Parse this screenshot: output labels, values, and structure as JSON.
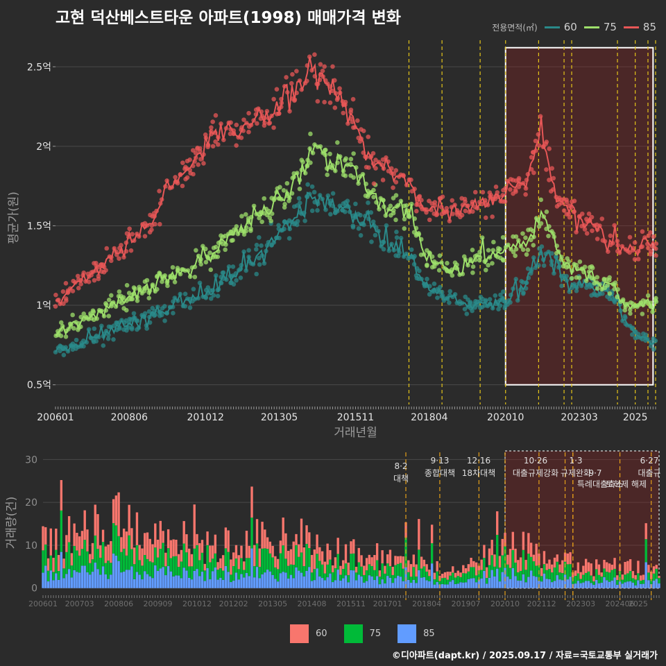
{
  "title": "고현 덕산베스트타운 아파트(1998) 매매가격 변화",
  "caption": "©디아파트(dapt.kr) / 2025.09.17 / 자료=국토교통부 실거래가",
  "colors": {
    "bg": "#2b2b2b",
    "s60": "#2a8a8a",
    "s75": "#9ee06b",
    "s85": "#e85757",
    "bar60": "#f8766d",
    "bar75": "#00ba38",
    "bar85": "#619cff",
    "policy": "#e6c619"
  },
  "chart_data": [
    {
      "type": "line",
      "legend_title": "전용면적(㎡)",
      "ylabel": "평균가(원)",
      "xlabel": "거래년월",
      "x_tick_labels": [
        "200601",
        "200806",
        "201012",
        "201305",
        "201511",
        "201804",
        "202010",
        "202303",
        "2025"
      ],
      "y_ticks": [
        0.5,
        1,
        1.5,
        2,
        2.5
      ],
      "y_tick_labels": [
        "0.5억",
        "1억",
        "1.5억",
        "2억",
        "2.5억"
      ],
      "y_range": [
        0.42,
        2.68
      ],
      "x_range": [
        "200601",
        "202509"
      ],
      "grid": true,
      "highlight_box": {
        "from": "202010",
        "to": "202508",
        "y": [
          0.5,
          2.62
        ]
      },
      "policy_dates": [
        "201708",
        "201809",
        "201912",
        "202010",
        "202111",
        "202209",
        "202212",
        "202406",
        "202501",
        "202506",
        "202509"
      ],
      "series": [
        {
          "name": "60",
          "anchors": [
            [
              "200601",
              0.7
            ],
            [
              "200901",
              0.92
            ],
            [
              "201101",
              1.08
            ],
            [
              "201301",
              1.38
            ],
            [
              "201401",
              1.58
            ],
            [
              "201405",
              1.67
            ],
            [
              "201509",
              1.58
            ],
            [
              "201604",
              1.52
            ],
            [
              "201709",
              1.3
            ],
            [
              "201802",
              1.12
            ],
            [
              "201901",
              1.02
            ],
            [
              "202001",
              1.0
            ],
            [
              "202010",
              1.03
            ],
            [
              "202107",
              1.17
            ],
            [
              "202112",
              1.32
            ],
            [
              "202206",
              1.3
            ],
            [
              "202209",
              1.16
            ],
            [
              "202406",
              1.05
            ],
            [
              "202409",
              0.9
            ],
            [
              "202508",
              0.75
            ]
          ]
        },
        {
          "name": "75",
          "anchors": [
            [
              "200601",
              0.82
            ],
            [
              "200901",
              1.12
            ],
            [
              "201101",
              1.3
            ],
            [
              "201301",
              1.62
            ],
            [
              "201401",
              1.8
            ],
            [
              "201405",
              2.0
            ],
            [
              "201509",
              1.85
            ],
            [
              "201604",
              1.73
            ],
            [
              "201709",
              1.55
            ],
            [
              "201802",
              1.3
            ],
            [
              "201901",
              1.22
            ],
            [
              "202001",
              1.3
            ],
            [
              "202010",
              1.35
            ],
            [
              "202107",
              1.4
            ],
            [
              "202112",
              1.55
            ],
            [
              "202206",
              1.4
            ],
            [
              "202209",
              1.27
            ],
            [
              "202406",
              1.1
            ],
            [
              "202409",
              1.0
            ],
            [
              "202508",
              1.0
            ]
          ]
        },
        {
          "name": "85",
          "anchors": [
            [
              "200601",
              1.0
            ],
            [
              "200901",
              1.5
            ],
            [
              "201101",
              2.05
            ],
            [
              "201301",
              2.2
            ],
            [
              "201401",
              2.4
            ],
            [
              "201405",
              2.52
            ],
            [
              "201509",
              2.2
            ],
            [
              "201604",
              1.95
            ],
            [
              "201709",
              1.75
            ],
            [
              "201802",
              1.62
            ],
            [
              "201901",
              1.6
            ],
            [
              "202001",
              1.65
            ],
            [
              "202010",
              1.7
            ],
            [
              "202107",
              1.8
            ],
            [
              "202112",
              2.12
            ],
            [
              "202206",
              1.65
            ],
            [
              "202209",
              1.6
            ],
            [
              "202406",
              1.4
            ],
            [
              "202409",
              1.35
            ],
            [
              "202508",
              1.38
            ]
          ]
        }
      ]
    },
    {
      "type": "bar",
      "stacked": true,
      "ylabel": "거래량(건)",
      "y_ticks": [
        0,
        10,
        20,
        30
      ],
      "y_range": [
        -1.5,
        32
      ],
      "x_tick_labels": [
        "200601",
        "200703",
        "200806",
        "200909",
        "201012",
        "201202",
        "201305",
        "201408",
        "201511",
        "201701",
        "201804",
        "201907",
        "202010",
        "202112",
        "202303",
        "202406",
        "2025"
      ],
      "highlight_box": {
        "from": "202010",
        "to": "202509",
        "y": [
          0,
          32
        ]
      },
      "series_names": [
        "60",
        "75",
        "85"
      ],
      "volume_anchors": [
        [
          "200601",
          10
        ],
        [
          "200806",
          16
        ],
        [
          "200909",
          14
        ],
        [
          "201012",
          10
        ],
        [
          "201202",
          10
        ],
        [
          "201305",
          12
        ],
        [
          "201408",
          10
        ],
        [
          "201511",
          8
        ],
        [
          "201701",
          7
        ],
        [
          "201804",
          5
        ],
        [
          "201907",
          4
        ],
        [
          "202010",
          11
        ],
        [
          "202112",
          8
        ],
        [
          "202303",
          5
        ],
        [
          "202406",
          5
        ],
        [
          "202509",
          4
        ]
      ],
      "policies": [
        {
          "date": "201708",
          "label_date": "8·2",
          "label_name": "대책"
        },
        {
          "date": "201809",
          "label_date": "9·13",
          "label_name": "종합대책"
        },
        {
          "date": "201912",
          "label_date": "12·16",
          "label_name": "18차대책"
        },
        {
          "date": "202010",
          "label_date": "",
          "label_name": ""
        },
        {
          "date": "202111",
          "label_date": "10·26",
          "label_name": "대출규제강화"
        },
        {
          "date": "202209",
          "label_date": "1·3",
          "label_name": "규제완화"
        },
        {
          "date": "202212",
          "label_date": "",
          "label_name": "9·7"
        },
        {
          "date": "202212",
          "label_date": "",
          "label_name": "특례대출축소"
        },
        {
          "date": "202406",
          "label_date": "",
          "label_name": "토허제 해제"
        },
        {
          "date": "202506",
          "label_date": "6·27",
          "label_name": "대출규"
        }
      ]
    }
  ]
}
